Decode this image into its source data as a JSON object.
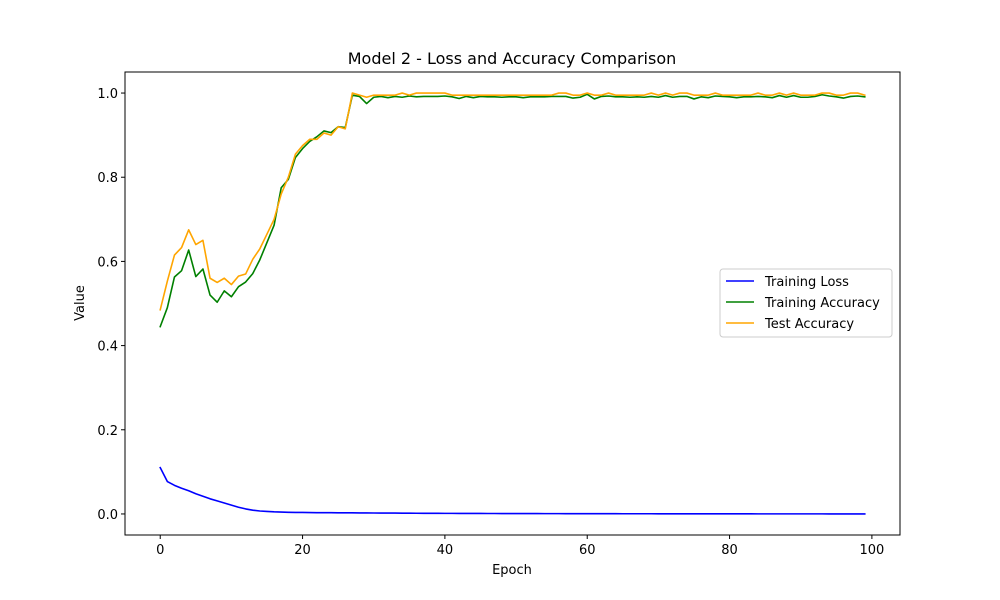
{
  "chart_data": {
    "type": "line",
    "title": "Model 2 - Loss and Accuracy Comparison",
    "xlabel": "Epoch",
    "ylabel": "Value",
    "xlim": [
      -4.95,
      103.95
    ],
    "ylim": [
      -0.05,
      1.05
    ],
    "xticks": [
      0,
      20,
      40,
      60,
      80,
      100
    ],
    "yticks": [
      0.0,
      0.2,
      0.4,
      0.6,
      0.8,
      1.0
    ],
    "xtick_labels": [
      "0",
      "20",
      "40",
      "60",
      "80",
      "100"
    ],
    "ytick_labels": [
      "0.0",
      "0.2",
      "0.4",
      "0.6",
      "0.8",
      "1.0"
    ],
    "grid": false,
    "legend_position": "center-right",
    "x": [
      0,
      1,
      2,
      3,
      4,
      5,
      6,
      7,
      8,
      9,
      10,
      11,
      12,
      13,
      14,
      15,
      16,
      17,
      18,
      19,
      20,
      21,
      22,
      23,
      24,
      25,
      26,
      27,
      28,
      29,
      30,
      31,
      32,
      33,
      34,
      35,
      36,
      37,
      38,
      39,
      40,
      41,
      42,
      43,
      44,
      45,
      46,
      47,
      48,
      49,
      50,
      51,
      52,
      53,
      54,
      55,
      56,
      57,
      58,
      59,
      60,
      61,
      62,
      63,
      64,
      65,
      66,
      67,
      68,
      69,
      70,
      71,
      72,
      73,
      74,
      75,
      76,
      77,
      78,
      79,
      80,
      81,
      82,
      83,
      84,
      85,
      86,
      87,
      88,
      89,
      90,
      91,
      92,
      93,
      94,
      95,
      96,
      97,
      98,
      99
    ],
    "series": [
      {
        "name": "Training Loss",
        "color": "#0000ff",
        "values": [
          0.11,
          0.077,
          0.068,
          0.061,
          0.055,
          0.048,
          0.042,
          0.036,
          0.031,
          0.026,
          0.021,
          0.016,
          0.012,
          0.009,
          0.007,
          0.006,
          0.005,
          0.0045,
          0.004,
          0.0037,
          0.0035,
          0.0033,
          0.0031,
          0.003,
          0.0029,
          0.0028,
          0.0027,
          0.0026,
          0.0025,
          0.0024,
          0.0023,
          0.0022,
          0.0021,
          0.002,
          0.0019,
          0.0018,
          0.0017,
          0.0016,
          0.0015,
          0.0015,
          0.0014,
          0.0014,
          0.0013,
          0.0013,
          0.0012,
          0.0012,
          0.0011,
          0.0011,
          0.001,
          0.001,
          0.001,
          0.0009,
          0.0009,
          0.0009,
          0.0008,
          0.0008,
          0.0008,
          0.0007,
          0.0007,
          0.0007,
          0.0007,
          0.0006,
          0.0006,
          0.0006,
          0.0006,
          0.0005,
          0.0005,
          0.0005,
          0.0005,
          0.0005,
          0.0004,
          0.0004,
          0.0004,
          0.0004,
          0.0004,
          0.0004,
          0.0003,
          0.0003,
          0.0003,
          0.0003,
          0.0003,
          0.0003,
          0.0003,
          0.0003,
          0.0002,
          0.0002,
          0.0002,
          0.0002,
          0.0002,
          0.0002,
          0.0002,
          0.0002,
          0.0002,
          0.0002,
          0.0001,
          0.0001,
          0.0001,
          0.0001,
          0.0001,
          0.0001
        ]
      },
      {
        "name": "Training Accuracy",
        "color": "#008000",
        "values": [
          0.445,
          0.49,
          0.563,
          0.578,
          0.627,
          0.564,
          0.582,
          0.52,
          0.503,
          0.53,
          0.516,
          0.54,
          0.551,
          0.571,
          0.604,
          0.645,
          0.686,
          0.775,
          0.795,
          0.847,
          0.868,
          0.885,
          0.896,
          0.91,
          0.906,
          0.92,
          0.918,
          0.995,
          0.992,
          0.975,
          0.99,
          0.992,
          0.989,
          0.992,
          0.99,
          0.993,
          0.991,
          0.992,
          0.992,
          0.992,
          0.993,
          0.991,
          0.987,
          0.992,
          0.989,
          0.992,
          0.991,
          0.991,
          0.99,
          0.991,
          0.991,
          0.989,
          0.991,
          0.991,
          0.991,
          0.992,
          0.992,
          0.992,
          0.988,
          0.99,
          0.997,
          0.986,
          0.992,
          0.993,
          0.991,
          0.991,
          0.99,
          0.991,
          0.99,
          0.992,
          0.99,
          0.994,
          0.99,
          0.992,
          0.992,
          0.986,
          0.991,
          0.989,
          0.993,
          0.992,
          0.991,
          0.989,
          0.991,
          0.991,
          0.992,
          0.991,
          0.989,
          0.994,
          0.99,
          0.994,
          0.99,
          0.99,
          0.992,
          0.996,
          0.993,
          0.991,
          0.988,
          0.992,
          0.993,
          0.991
        ]
      },
      {
        "name": "Test Accuracy",
        "color": "#ffa500",
        "values": [
          0.485,
          0.553,
          0.615,
          0.633,
          0.675,
          0.64,
          0.65,
          0.56,
          0.55,
          0.56,
          0.545,
          0.565,
          0.57,
          0.605,
          0.63,
          0.665,
          0.7,
          0.76,
          0.8,
          0.855,
          0.875,
          0.89,
          0.89,
          0.905,
          0.9,
          0.92,
          0.915,
          1.0,
          0.995,
          0.99,
          0.995,
          0.995,
          0.995,
          0.995,
          1.0,
          0.995,
          1.0,
          1.0,
          1.0,
          1.0,
          1.0,
          0.995,
          0.995,
          0.995,
          0.995,
          0.995,
          0.995,
          0.995,
          0.995,
          0.995,
          0.995,
          0.995,
          0.995,
          0.995,
          0.995,
          0.995,
          1.0,
          1.0,
          0.995,
          0.995,
          1.0,
          0.995,
          0.995,
          1.0,
          0.995,
          0.995,
          0.995,
          0.995,
          0.995,
          1.0,
          0.995,
          1.0,
          0.995,
          1.0,
          1.0,
          0.995,
          0.995,
          0.995,
          1.0,
          0.995,
          0.995,
          0.995,
          0.995,
          0.995,
          1.0,
          0.995,
          0.995,
          1.0,
          0.995,
          1.0,
          0.995,
          0.995,
          0.995,
          1.0,
          1.0,
          0.995,
          0.995,
          1.0,
          1.0,
          0.995
        ]
      }
    ]
  }
}
